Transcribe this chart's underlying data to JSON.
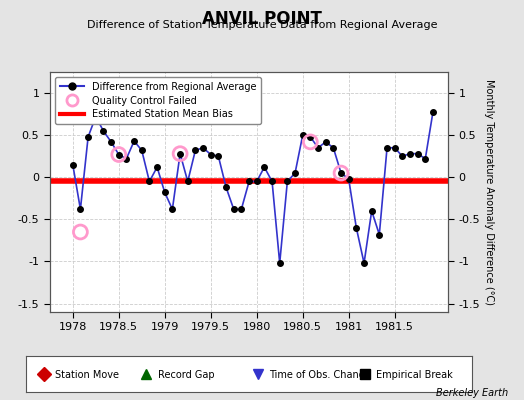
{
  "title": "ANVIL POINT",
  "subtitle": "Difference of Station Temperature Data from Regional Average",
  "ylabel": "Monthly Temperature Anomaly Difference (°C)",
  "credit": "Berkeley Earth",
  "xlim": [
    1977.75,
    1982.08
  ],
  "ylim": [
    -1.6,
    1.25
  ],
  "yticks": [
    -1.5,
    -1.0,
    -0.5,
    0,
    0.5,
    1.0
  ],
  "xticks": [
    1978,
    1978.5,
    1979,
    1979.5,
    1980,
    1980.5,
    1981,
    1981.5
  ],
  "xticklabels": [
    "1978",
    "1978.5",
    "1979",
    "1979.5",
    "1980",
    "1980.5",
    "1981",
    "1981.5"
  ],
  "mean_bias": -0.05,
  "bias_color": "#ff0000",
  "line_color": "#3333cc",
  "line_width": 1.2,
  "marker_color": "#000000",
  "marker_size": 4,
  "qc_color": "#ff99cc",
  "background_color": "#e4e4e4",
  "plot_bg_color": "#ffffff",
  "grid_color": "#cccccc",
  "data_x": [
    1978.0,
    1978.083,
    1978.167,
    1978.25,
    1978.333,
    1978.417,
    1978.5,
    1978.583,
    1978.667,
    1978.75,
    1978.833,
    1978.917,
    1979.0,
    1979.083,
    1979.167,
    1979.25,
    1979.333,
    1979.417,
    1979.5,
    1979.583,
    1979.667,
    1979.75,
    1979.833,
    1979.917,
    1980.0,
    1980.083,
    1980.167,
    1980.25,
    1980.333,
    1980.417,
    1980.5,
    1980.583,
    1980.667,
    1980.75,
    1980.833,
    1980.917,
    1981.0,
    1981.083,
    1981.167,
    1981.25,
    1981.333,
    1981.417,
    1981.5,
    1981.583,
    1981.667,
    1981.75,
    1981.833,
    1981.917
  ],
  "data_y": [
    0.15,
    -0.38,
    0.48,
    0.72,
    0.55,
    0.42,
    0.27,
    0.22,
    0.43,
    0.32,
    -0.05,
    0.12,
    -0.18,
    -0.38,
    0.28,
    -0.05,
    0.32,
    0.35,
    0.27,
    0.25,
    -0.12,
    -0.38,
    -0.38,
    -0.05,
    -0.05,
    0.12,
    -0.05,
    -1.02,
    -0.05,
    0.05,
    0.5,
    0.48,
    0.35,
    0.42,
    0.35,
    0.05,
    -0.02,
    -0.6,
    -1.02,
    -0.4,
    -0.68,
    0.35,
    0.35,
    0.25,
    0.28,
    0.28,
    0.22,
    0.78
  ],
  "qc_failed_x": [
    1978.083,
    1978.5,
    1979.167,
    1980.583,
    1980.917
  ],
  "qc_failed_y": [
    -0.65,
    0.27,
    0.28,
    0.42,
    0.05
  ],
  "legend1_labels": [
    "Difference from Regional Average",
    "Quality Control Failed",
    "Estimated Station Mean Bias"
  ],
  "legend2_items": [
    {
      "label": "Station Move",
      "color": "#cc0000",
      "marker": "D"
    },
    {
      "label": "Record Gap",
      "color": "#006600",
      "marker": "^"
    },
    {
      "label": "Time of Obs. Change",
      "color": "#3333cc",
      "marker": "v"
    },
    {
      "label": "Empirical Break",
      "color": "#000000",
      "marker": "s"
    }
  ],
  "title_fontsize": 12,
  "subtitle_fontsize": 8,
  "tick_fontsize": 8,
  "ylabel_fontsize": 7
}
